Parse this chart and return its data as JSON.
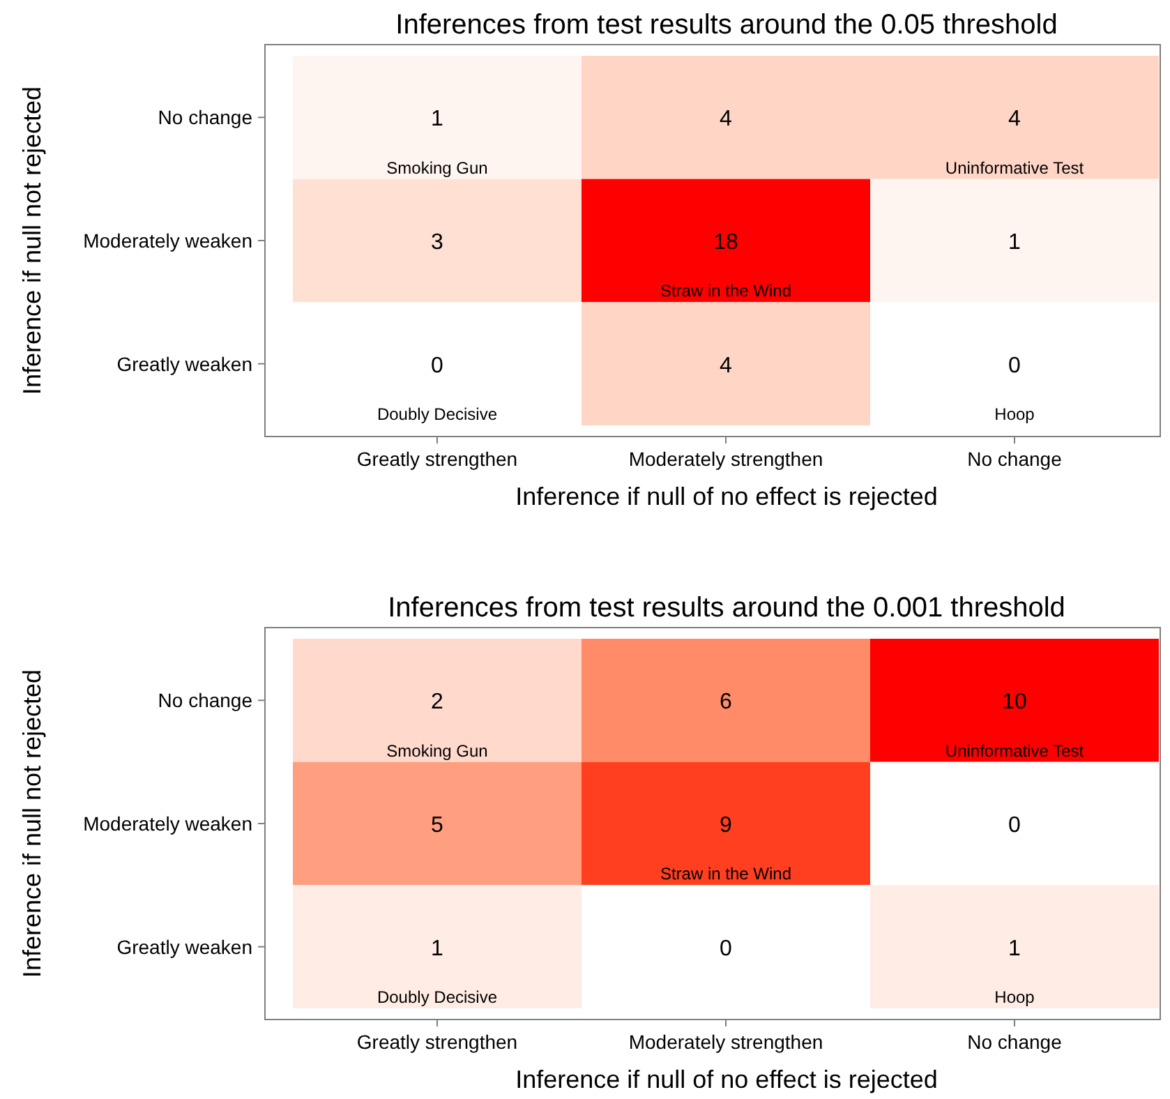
{
  "chart_data": [
    {
      "type": "heatmap",
      "title": "Inferences from test results around the 0.05 threshold",
      "xlabel": "Inference if null of no effect is rejected",
      "ylabel": "Inference if null not rejected",
      "categories": [
        "Greatly strengthen",
        "Moderately strengthen",
        "No change"
      ],
      "y_categories": [
        "No change",
        "Moderately weaken",
        "Greatly weaken"
      ],
      "cells": [
        [
          1,
          4,
          4
        ],
        [
          3,
          18,
          1
        ],
        [
          0,
          4,
          0
        ]
      ],
      "color": "#ff0000",
      "data_labels": true,
      "annotations": [
        "Smoking Gun",
        "Uninformative Test",
        "Straw in the Wind",
        "Doubly Decisive",
        "Hoop"
      ]
    },
    {
      "type": "heatmap",
      "title": "Inferences from test results around the 0.001 threshold",
      "xlabel": "Inference if null of no effect is rejected",
      "ylabel": "Inference if null not rejected",
      "categories": [
        "Greatly strengthen",
        "Moderately strengthen",
        "No change"
      ],
      "y_categories": [
        "No change",
        "Moderately weaken",
        "Greatly weaken"
      ],
      "cells": [
        [
          2,
          6,
          10
        ],
        [
          5,
          9,
          0
        ],
        [
          1,
          0,
          1
        ]
      ],
      "color": "#ff0000",
      "data_labels": true,
      "annotations": [
        "Smoking Gun",
        "Uninformative Test",
        "Straw in the Wind",
        "Doubly Decisive",
        "Hoop"
      ]
    }
  ]
}
